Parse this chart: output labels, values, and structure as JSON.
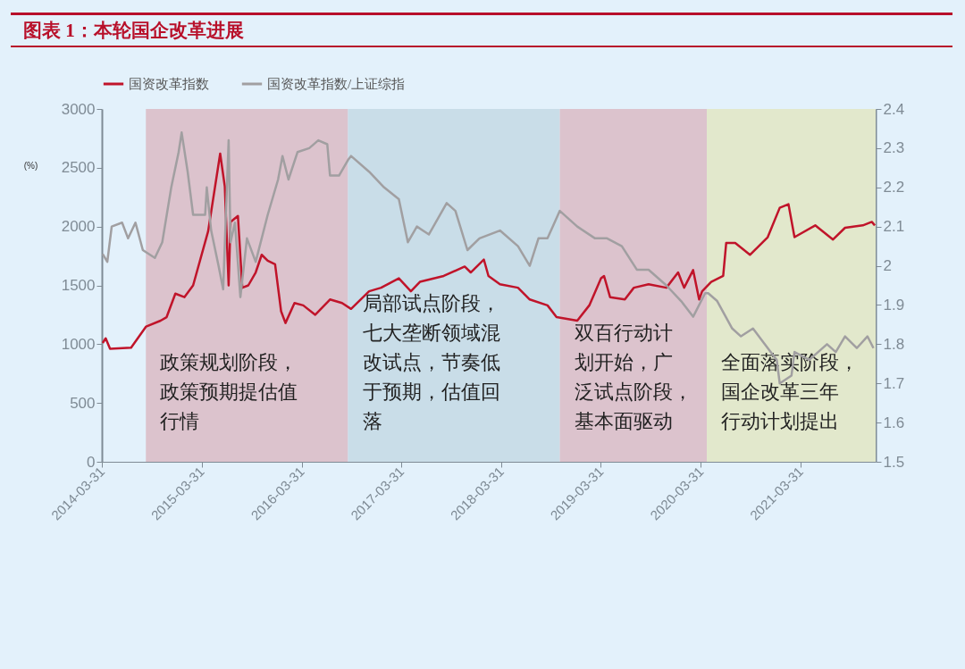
{
  "chart_data": {
    "type": "line",
    "title": "图表 1：本轮国企改革进展",
    "ylabel": "(%)",
    "legend": "top",
    "grid": false,
    "xlim": [
      "2014-03-31",
      "2021-12-31"
    ],
    "xticks": [
      "2014-03-31",
      "2015-03-31",
      "2016-03-31",
      "2017-03-31",
      "2018-03-31",
      "2019-03-31",
      "2020-03-31",
      "2021-03-31"
    ],
    "ylim": [
      0,
      3000
    ],
    "yticks": [
      0,
      500,
      1000,
      1500,
      2000,
      2500,
      3000
    ],
    "y2lim": [
      1.5,
      2.4
    ],
    "y2ticks": [
      1.5,
      1.6,
      1.7,
      1.8,
      1.9,
      2,
      2.1,
      2.2,
      2.3,
      2.4
    ],
    "bands": [
      {
        "axis": "x",
        "from": "2014-09-08",
        "to": "2016-09-17",
        "label": "政策规划阶段，政策预期提估值行情",
        "color": "#dcc3cd"
      },
      {
        "axis": "x",
        "from": "2016-09-17",
        "to": "2018-11-01",
        "label": "局部试点阶段，七大垄断领域混改试点，节奏低于预期，估值回落",
        "color": "#c9dde8"
      },
      {
        "axis": "x",
        "from": "2018-11-01",
        "to": "2020-04-22",
        "label": "双百行动计划开始，广泛试点阶段，基本面驱动",
        "color": "#dcc3cd"
      },
      {
        "axis": "x",
        "from": "2020-04-22",
        "to": "2021-12-31",
        "label": "全面落实阶段，国企改革三年行动计划提出",
        "color": "#e2e8cc"
      }
    ],
    "series": [
      {
        "name": "国资改革指数",
        "color": "#c0142a",
        "x": [
          "2014-04-03",
          "2014-04-14",
          "2014-04-30",
          "2014-07-16",
          "2014-09-09",
          "2014-11-01",
          "2014-11-23",
          "2014-12-25",
          "2015-01-27",
          "2015-02-28",
          "2015-04-24",
          "2015-06-07",
          "2015-06-24",
          "2015-07-08",
          "2015-07-15",
          "2015-08-11",
          "2015-08-27",
          "2015-09-18",
          "2015-10-15",
          "2015-11-06",
          "2015-11-28",
          "2015-12-25",
          "2016-01-16",
          "2016-02-01",
          "2016-03-05",
          "2016-04-06",
          "2016-05-20",
          "2016-07-13",
          "2016-08-26",
          "2016-09-28",
          "2016-12-03",
          "2017-01-16",
          "2017-03-22",
          "2017-05-05",
          "2017-06-07",
          "2017-09-02",
          "2017-11-18",
          "2017-12-10",
          "2018-01-27",
          "2018-02-13",
          "2018-03-27",
          "2018-06-01",
          "2018-07-14",
          "2018-09-17",
          "2018-10-20",
          "2019-01-04",
          "2019-02-17",
          "2019-04-01",
          "2019-04-12",
          "2019-05-04",
          "2019-06-27",
          "2019-07-30",
          "2019-09-22",
          "2019-11-26",
          "2020-01-08",
          "2020-01-30",
          "2020-03-03",
          "2020-03-25",
          "2020-04-05",
          "2020-05-08",
          "2020-06-21",
          "2020-07-02",
          "2020-08-04",
          "2020-09-27",
          "2020-12-01",
          "2021-01-14",
          "2021-02-15",
          "2021-03-09",
          "2021-05-24",
          "2021-07-28",
          "2021-09-10",
          "2021-11-14",
          "2021-12-17",
          "2021-12-28"
        ],
        "values": [
          1010,
          1050,
          960,
          970,
          1150,
          1200,
          1230,
          1430,
          1400,
          1500,
          1960,
          2620,
          2340,
          1500,
          2040,
          2090,
          1480,
          1500,
          1610,
          1760,
          1710,
          1680,
          1280,
          1180,
          1350,
          1330,
          1250,
          1380,
          1350,
          1300,
          1450,
          1480,
          1560,
          1450,
          1530,
          1580,
          1660,
          1610,
          1720,
          1580,
          1510,
          1480,
          1380,
          1330,
          1230,
          1200,
          1330,
          1560,
          1580,
          1400,
          1380,
          1480,
          1510,
          1480,
          1610,
          1480,
          1630,
          1380,
          1450,
          1530,
          1580,
          1860,
          1860,
          1760,
          1910,
          2160,
          2190,
          1910,
          2010,
          1890,
          1990,
          2010,
          2040,
          2010
        ]
      },
      {
        "name": "国资改革指数/上证综指",
        "color": "#a19fa1",
        "axis": "y2",
        "x": [
          "2014-04-03",
          "2014-04-20",
          "2014-05-06",
          "2014-06-13",
          "2014-07-05",
          "2014-08-01",
          "2014-08-28",
          "2014-10-11",
          "2014-11-07",
          "2014-12-10",
          "2015-01-06",
          "2015-01-17",
          "2015-02-08",
          "2015-02-28",
          "2015-04-13",
          "2015-04-19",
          "2015-05-05",
          "2015-06-01",
          "2015-06-18",
          "2015-07-08",
          "2015-07-15",
          "2015-07-31",
          "2015-08-20",
          "2015-09-13",
          "2015-10-15",
          "2015-11-28",
          "2016-01-05",
          "2016-01-21",
          "2016-02-12",
          "2016-03-16",
          "2016-04-28",
          "2016-05-31",
          "2016-07-03",
          "2016-07-13",
          "2016-08-15",
          "2016-09-17",
          "2016-09-28",
          "2016-12-03",
          "2017-01-27",
          "2017-03-22",
          "2017-04-24",
          "2017-05-27",
          "2017-07-10",
          "2017-09-13",
          "2017-10-15",
          "2017-11-28",
          "2018-01-11",
          "2018-03-27",
          "2018-06-01",
          "2018-07-14",
          "2018-08-15",
          "2018-09-17",
          "2018-11-01",
          "2019-01-04",
          "2019-03-10",
          "2019-04-23",
          "2019-06-16",
          "2019-08-10",
          "2019-09-22",
          "2019-11-26",
          "2020-01-19",
          "2020-03-03",
          "2020-04-16",
          "2020-04-27",
          "2020-05-30",
          "2020-07-24",
          "2020-08-25",
          "2020-10-08",
          "2020-11-20",
          "2021-01-03",
          "2021-01-14",
          "2021-02-26",
          "2021-03-09",
          "2021-05-02",
          "2021-07-06",
          "2021-08-07",
          "2021-09-10",
          "2021-10-23",
          "2021-12-01",
          "2021-12-23"
        ],
        "values": [
          2.03,
          2.01,
          2.1,
          2.11,
          2.07,
          2.11,
          2.04,
          2.02,
          2.06,
          2.2,
          2.29,
          2.34,
          2.24,
          2.13,
          2.13,
          2.2,
          2.09,
          2.0,
          1.94,
          2.32,
          2.06,
          2.11,
          1.92,
          2.07,
          2.01,
          2.13,
          2.22,
          2.28,
          2.22,
          2.29,
          2.3,
          2.32,
          2.31,
          2.23,
          2.23,
          2.27,
          2.28,
          2.24,
          2.2,
          2.17,
          2.06,
          2.1,
          2.08,
          2.16,
          2.14,
          2.04,
          2.07,
          2.09,
          2.05,
          2.0,
          2.07,
          2.07,
          2.14,
          2.1,
          2.07,
          2.07,
          2.05,
          1.99,
          1.99,
          1.95,
          1.91,
          1.87,
          1.93,
          1.93,
          1.91,
          1.84,
          1.82,
          1.84,
          1.8,
          1.76,
          1.7,
          1.72,
          1.78,
          1.76,
          1.8,
          1.78,
          1.82,
          1.79,
          1.82,
          1.79
        ]
      }
    ]
  }
}
